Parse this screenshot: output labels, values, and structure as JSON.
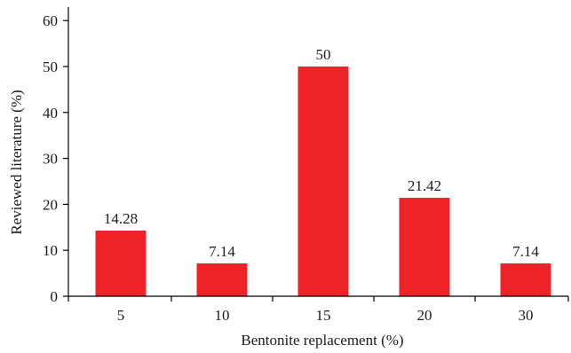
{
  "chart_data": {
    "type": "bar",
    "categories": [
      "5",
      "10",
      "15",
      "20",
      "30"
    ],
    "values": [
      14.28,
      7.14,
      50,
      21.42,
      7.14
    ],
    "data_labels": [
      "14.28",
      "7.14",
      "50",
      "21.42",
      "7.14"
    ],
    "title": "",
    "xlabel": "Bentonite replacement (%)",
    "ylabel": "Reviewed literature (%)",
    "ylim": [
      0,
      60
    ],
    "yticks": [
      "0",
      "10",
      "20",
      "30",
      "40",
      "50",
      "60"
    ],
    "grid": false,
    "bar_color": "#ee2328"
  }
}
